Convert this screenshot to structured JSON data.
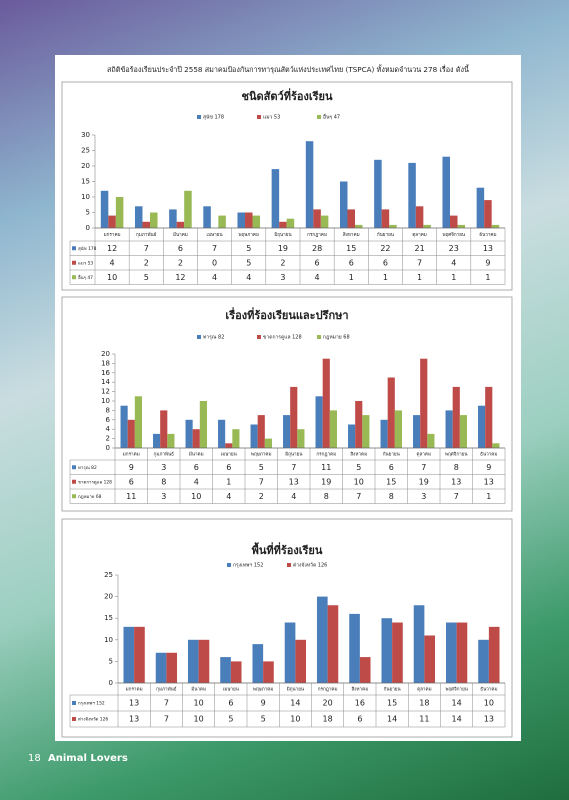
{
  "header": {
    "title": "สถิติข้อร้องเรียนประจำปี 2558 สมาคมป้องกันการทารุณสัตว์แห่งประเทศไทย (TSPCA) ทั้งหมดจำนวน 278 เรื่อง ดังนี้"
  },
  "footer": {
    "page": "18",
    "brand": "Animal Lovers"
  },
  "chart_data": [
    {
      "type": "bar",
      "title": "ชนิดสัตว์ที่ร้องเรียน",
      "categories": [
        "มกราคม",
        "กุมภาพันธ์",
        "มีนาคม",
        "เมษายน",
        "พฤษภาคม",
        "มิถุนายน",
        "กรกฎาคม",
        "สิงหาคม",
        "กันยายน",
        "ตุลาคม",
        "พฤศจิกายน",
        "ธันวาคม"
      ],
      "series": [
        {
          "name": "สุนัข 178",
          "color": "#4a7ebb",
          "values": [
            12,
            7,
            6,
            7,
            5,
            19,
            28,
            15,
            22,
            21,
            23,
            13
          ]
        },
        {
          "name": "แมว 53",
          "color": "#be4b48",
          "values": [
            4,
            2,
            2,
            0,
            5,
            2,
            6,
            6,
            6,
            7,
            4,
            9
          ]
        },
        {
          "name": "อื่นๆ 47",
          "color": "#98b954",
          "values": [
            10,
            5,
            12,
            4,
            4,
            3,
            4,
            1,
            1,
            1,
            1,
            1
          ]
        }
      ],
      "ylim": [
        0,
        30
      ],
      "yticks": [
        0,
        5,
        10,
        15,
        20,
        25,
        30
      ],
      "grid": false
    },
    {
      "type": "bar",
      "title": "เรื่องที่ร้องเรียนและปรึกษา",
      "categories": [
        "มกราคม",
        "กุมภาพันธ์",
        "มีนาคม",
        "เมษายน",
        "พฤษภาคม",
        "มิถุนายน",
        "กรกฎาคม",
        "สิงหาคม",
        "กันยายน",
        "ตุลาคม",
        "พฤศจิกายน",
        "ธันวาคม"
      ],
      "series": [
        {
          "name": "ทารุณ 82",
          "color": "#4a7ebb",
          "values": [
            9,
            3,
            6,
            6,
            5,
            7,
            11,
            5,
            6,
            7,
            8,
            9
          ]
        },
        {
          "name": "ขาดการดูแล 128",
          "color": "#be4b48",
          "values": [
            6,
            8,
            4,
            1,
            7,
            13,
            19,
            10,
            15,
            19,
            13,
            13
          ]
        },
        {
          "name": "กฎหมาย 68",
          "color": "#98b954",
          "values": [
            11,
            3,
            10,
            4,
            2,
            4,
            8,
            7,
            8,
            3,
            7,
            1
          ]
        }
      ],
      "ylim": [
        0,
        20
      ],
      "yticks": [
        0,
        2,
        4,
        6,
        8,
        10,
        12,
        14,
        16,
        18,
        20
      ],
      "grid": false
    },
    {
      "type": "bar",
      "title": "พื้นที่ที่ร้องเรียน",
      "categories": [
        "มกราคม",
        "กุมภาพันธ์",
        "มีนาคม",
        "เมษายน",
        "พฤษภาคม",
        "มิถุนายน",
        "กรกฎาคม",
        "สิงหาคม",
        "กันยายน",
        "ตุลาคม",
        "พฤศจิกายน",
        "ธันวาคม"
      ],
      "series": [
        {
          "name": "กรุงเทพฯ 152",
          "color": "#4a7ebb",
          "values": [
            13,
            7,
            10,
            6,
            9,
            14,
            20,
            16,
            15,
            18,
            14,
            10
          ]
        },
        {
          "name": "ต่างจังหวัด 126",
          "color": "#be4b48",
          "values": [
            13,
            7,
            10,
            5,
            5,
            10,
            18,
            6,
            14,
            11,
            14,
            13
          ]
        }
      ],
      "ylim": [
        0,
        25
      ],
      "yticks": [
        0,
        5,
        10,
        15,
        20,
        25
      ],
      "grid": false
    }
  ]
}
